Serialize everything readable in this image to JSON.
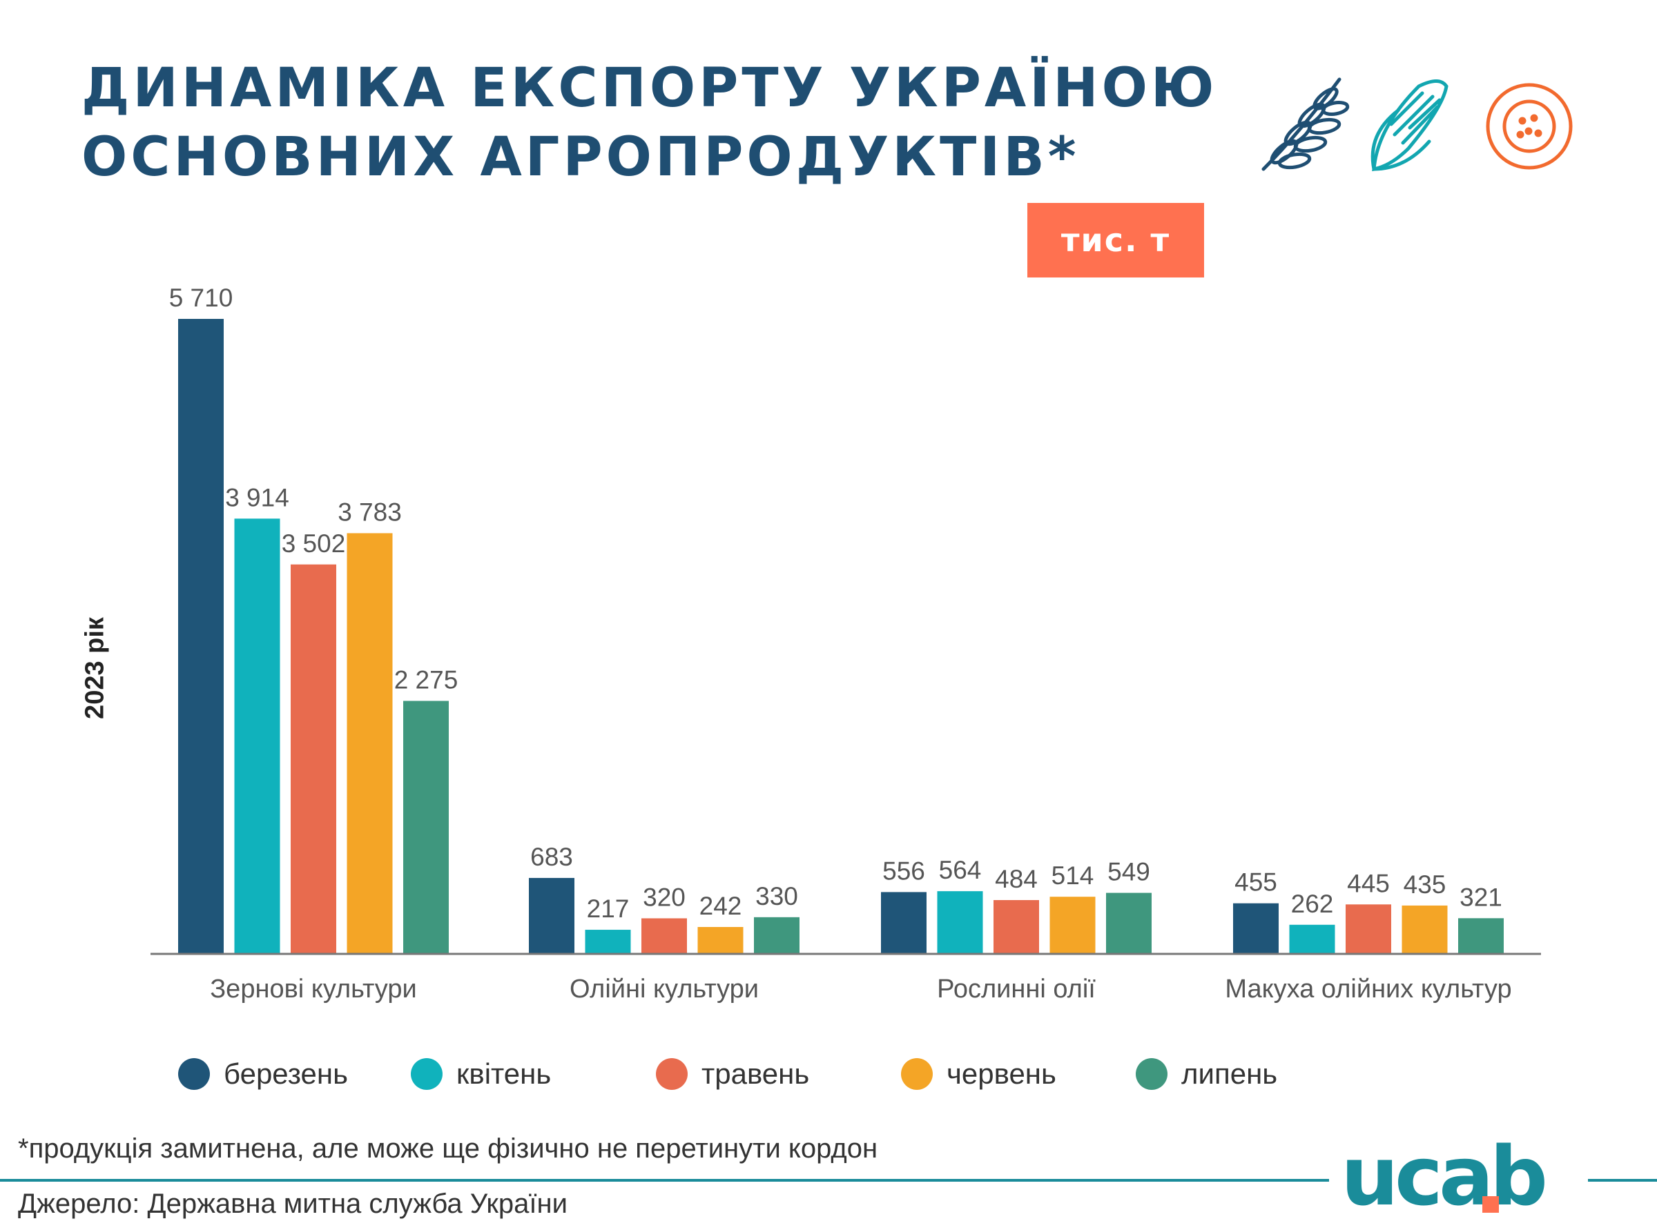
{
  "title": {
    "line1": "ДИНАМІКА ЕКСПОРТУ УКРАЇНОЮ",
    "line2": "ОСНОВНИХ АГРОПРОДУКТІВ*"
  },
  "unit_badge": "тис. т",
  "footnote": "*продукція замитнена, але може ще фізично не перетинути кордон",
  "source": "Джерело: Державна митна служба України",
  "logo_text": "ucab",
  "icons": [
    "wheat-icon",
    "corn-icon",
    "sunflower-icon"
  ],
  "colors": {
    "title": "#1f4e72",
    "badge": "#ff7150",
    "rule": "#1a8c9a",
    "logo_main": "#1a8c9a",
    "logo_accent": "#ff7150"
  },
  "chart_data": {
    "type": "bar",
    "categories": [
      "Зернові культури",
      "Олійні культури",
      "Рослинні олії",
      "Макуха олійних культур"
    ],
    "ylabel": "2023 рік",
    "ylim": [
      0,
      6000
    ],
    "grid": false,
    "legend_position": "bottom",
    "series": [
      {
        "name": "березень",
        "color": "#1f5578",
        "values": [
          5710,
          683,
          556,
          455
        ],
        "labels": [
          "5 710",
          "683",
          "556",
          "455"
        ]
      },
      {
        "name": "квітень",
        "color": "#10b2bc",
        "values": [
          3914,
          217,
          564,
          262
        ],
        "labels": [
          "3 914",
          "217",
          "564",
          "262"
        ]
      },
      {
        "name": "травень",
        "color": "#e86b4e",
        "values": [
          3502,
          320,
          484,
          445
        ],
        "labels": [
          "3 502",
          "320",
          "484",
          "445"
        ]
      },
      {
        "name": "червень",
        "color": "#f4a526",
        "values": [
          3783,
          242,
          514,
          435
        ],
        "labels": [
          "3 783",
          "242",
          "514",
          "435"
        ]
      },
      {
        "name": "липень",
        "color": "#3f977e",
        "values": [
          2275,
          330,
          549,
          321
        ],
        "labels": [
          "2 275",
          "330",
          "549",
          "321"
        ]
      }
    ]
  }
}
